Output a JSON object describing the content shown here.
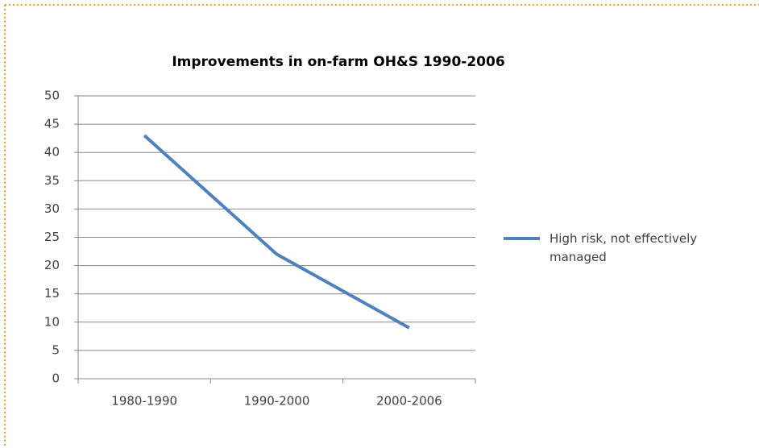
{
  "chart_data": {
    "type": "line",
    "title": "Improvements in on-farm OH&S 1990-2006",
    "categories": [
      "1980-1990",
      "1990-2000",
      "2000-2006"
    ],
    "series": [
      {
        "name": "High risk, not effectively managed",
        "color": "#4f81bd",
        "values": [
          43,
          22,
          9
        ]
      }
    ],
    "ylim": [
      0,
      50
    ],
    "yticks": [
      0,
      5,
      10,
      15,
      20,
      25,
      30,
      35,
      40,
      45,
      50
    ],
    "grid": true,
    "legend": "right"
  }
}
